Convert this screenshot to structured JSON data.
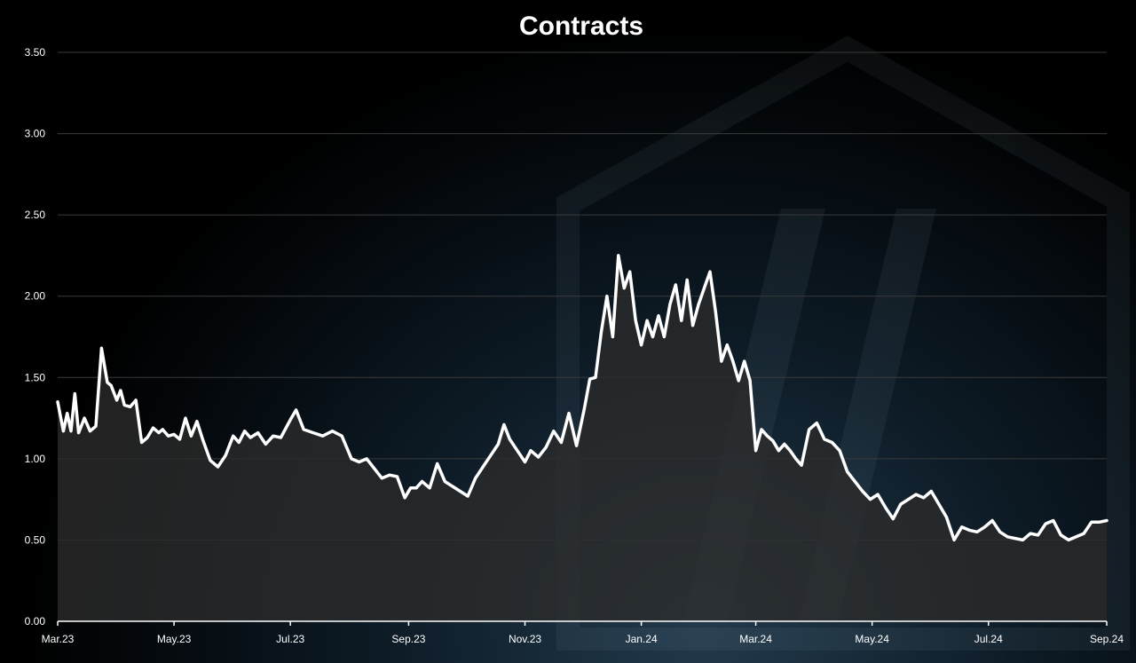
{
  "chart_data": {
    "type": "area",
    "title": "Contracts",
    "xlabel": "",
    "ylabel": "",
    "ylim": [
      0,
      3.5
    ],
    "y_ticks": [
      0,
      0.5,
      1.0,
      1.5,
      2.0,
      2.5,
      3.0,
      3.5
    ],
    "y_tick_labels": [
      "0.00",
      "0.50",
      "1.00",
      "1.50",
      "2.00",
      "2.50",
      "3.00",
      "3.50"
    ],
    "x_range": [
      "2023-03-01",
      "2024-09-01"
    ],
    "x_ticks": [
      "2023-03-01",
      "2023-05-01",
      "2023-07-01",
      "2023-09-01",
      "2023-11-01",
      "2024-01-01",
      "2024-03-01",
      "2024-05-01",
      "2024-07-01",
      "2024-09-01"
    ],
    "x_tick_labels": [
      "Mar.23",
      "May.23",
      "Jul.23",
      "Sep.23",
      "Nov.23",
      "Jan.24",
      "Mar.24",
      "May.24",
      "Jul.24",
      "Sep.24"
    ],
    "grid": true,
    "colors": {
      "line": "#ffffff",
      "area": "#2b2b2b",
      "grid": "#3a3a3a",
      "axis": "#ffffff",
      "text": "#ffffff"
    },
    "series": [
      {
        "x": [
          "2023-03-01",
          "2023-03-04",
          "2023-03-06",
          "2023-03-08",
          "2023-03-10",
          "2023-03-12",
          "2023-03-15",
          "2023-03-18",
          "2023-03-21",
          "2023-03-24",
          "2023-03-27",
          "2023-03-29",
          "2023-04-01",
          "2023-04-03",
          "2023-04-05",
          "2023-04-08",
          "2023-04-11",
          "2023-04-14",
          "2023-04-17",
          "2023-04-20",
          "2023-04-23",
          "2023-04-25",
          "2023-04-28",
          "2023-05-01",
          "2023-05-04",
          "2023-05-07",
          "2023-05-10",
          "2023-05-13",
          "2023-05-16",
          "2023-05-20",
          "2023-05-24",
          "2023-05-28",
          "2023-06-01",
          "2023-06-04",
          "2023-06-07",
          "2023-06-10",
          "2023-06-14",
          "2023-06-18",
          "2023-06-22",
          "2023-06-26",
          "2023-07-01",
          "2023-07-04",
          "2023-07-08",
          "2023-07-13",
          "2023-07-18",
          "2023-07-23",
          "2023-07-28",
          "2023-08-02",
          "2023-08-06",
          "2023-08-10",
          "2023-08-14",
          "2023-08-18",
          "2023-08-22",
          "2023-08-26",
          "2023-08-30",
          "2023-09-02",
          "2023-09-05",
          "2023-09-08",
          "2023-09-12",
          "2023-09-16",
          "2023-09-20",
          "2023-09-24",
          "2023-09-28",
          "2023-10-02",
          "2023-10-06",
          "2023-10-10",
          "2023-10-14",
          "2023-10-18",
          "2023-10-21",
          "2023-10-24",
          "2023-10-28",
          "2023-11-01",
          "2023-11-04",
          "2023-11-08",
          "2023-11-12",
          "2023-11-16",
          "2023-11-20",
          "2023-11-24",
          "2023-11-28",
          "2023-12-02",
          "2023-12-05",
          "2023-12-08",
          "2023-12-11",
          "2023-12-14",
          "2023-12-17",
          "2023-12-20",
          "2023-12-23",
          "2023-12-26",
          "2023-12-29",
          "2024-01-01",
          "2024-01-04",
          "2024-01-07",
          "2024-01-10",
          "2024-01-13",
          "2024-01-16",
          "2024-01-19",
          "2024-01-22",
          "2024-01-25",
          "2024-01-28",
          "2024-01-31",
          "2024-02-03",
          "2024-02-06",
          "2024-02-09",
          "2024-02-12",
          "2024-02-15",
          "2024-02-18",
          "2024-02-21",
          "2024-02-24",
          "2024-02-27",
          "2024-03-01",
          "2024-03-04",
          "2024-03-07",
          "2024-03-10",
          "2024-03-13",
          "2024-03-16",
          "2024-03-19",
          "2024-03-22",
          "2024-03-25",
          "2024-03-29",
          "2024-04-02",
          "2024-04-06",
          "2024-04-10",
          "2024-04-14",
          "2024-04-18",
          "2024-04-22",
          "2024-04-26",
          "2024-04-30",
          "2024-05-04",
          "2024-05-08",
          "2024-05-12",
          "2024-05-16",
          "2024-05-20",
          "2024-05-24",
          "2024-05-28",
          "2024-06-01",
          "2024-06-05",
          "2024-06-09",
          "2024-06-13",
          "2024-06-17",
          "2024-06-21",
          "2024-06-25",
          "2024-06-29",
          "2024-07-03",
          "2024-07-07",
          "2024-07-11",
          "2024-07-15",
          "2024-07-19",
          "2024-07-23",
          "2024-07-27",
          "2024-07-31",
          "2024-08-04",
          "2024-08-08",
          "2024-08-12",
          "2024-08-16",
          "2024-08-20",
          "2024-08-24",
          "2024-08-28",
          "2024-09-01"
        ],
        "values": [
          1.35,
          1.17,
          1.28,
          1.17,
          1.4,
          1.16,
          1.25,
          1.17,
          1.2,
          1.68,
          1.47,
          1.45,
          1.36,
          1.42,
          1.33,
          1.32,
          1.36,
          1.1,
          1.13,
          1.19,
          1.16,
          1.18,
          1.14,
          1.15,
          1.12,
          1.25,
          1.14,
          1.23,
          1.12,
          0.99,
          0.95,
          1.02,
          1.14,
          1.1,
          1.17,
          1.13,
          1.16,
          1.09,
          1.14,
          1.13,
          1.24,
          1.3,
          1.18,
          1.16,
          1.14,
          1.17,
          1.14,
          1.0,
          0.98,
          1.0,
          0.94,
          0.88,
          0.9,
          0.89,
          0.76,
          0.82,
          0.82,
          0.86,
          0.82,
          0.97,
          0.86,
          0.83,
          0.8,
          0.77,
          0.88,
          0.95,
          1.02,
          1.09,
          1.21,
          1.12,
          1.05,
          0.98,
          1.05,
          1.01,
          1.07,
          1.17,
          1.1,
          1.28,
          1.08,
          1.3,
          1.49,
          1.5,
          1.78,
          2.0,
          1.75,
          2.25,
          2.05,
          2.15,
          1.85,
          1.7,
          1.85,
          1.75,
          1.88,
          1.75,
          1.95,
          2.07,
          1.85,
          2.1,
          1.82,
          1.95,
          2.05,
          2.15,
          1.9,
          1.6,
          1.7,
          1.6,
          1.48,
          1.6,
          1.48,
          1.05,
          1.18,
          1.14,
          1.11,
          1.05,
          1.09,
          1.05,
          1.0,
          0.96,
          1.18,
          1.22,
          1.12,
          1.1,
          1.05,
          0.92,
          0.86,
          0.8,
          0.75,
          0.78,
          0.7,
          0.63,
          0.72,
          0.75,
          0.78,
          0.76,
          0.8,
          0.72,
          0.64,
          0.5,
          0.58,
          0.56,
          0.55,
          0.58,
          0.62,
          0.55,
          0.52,
          0.51,
          0.5,
          0.54,
          0.53,
          0.6,
          0.62,
          0.53,
          0.5,
          0.52,
          0.54,
          0.61,
          0.61,
          0.62
        ]
      }
    ]
  }
}
